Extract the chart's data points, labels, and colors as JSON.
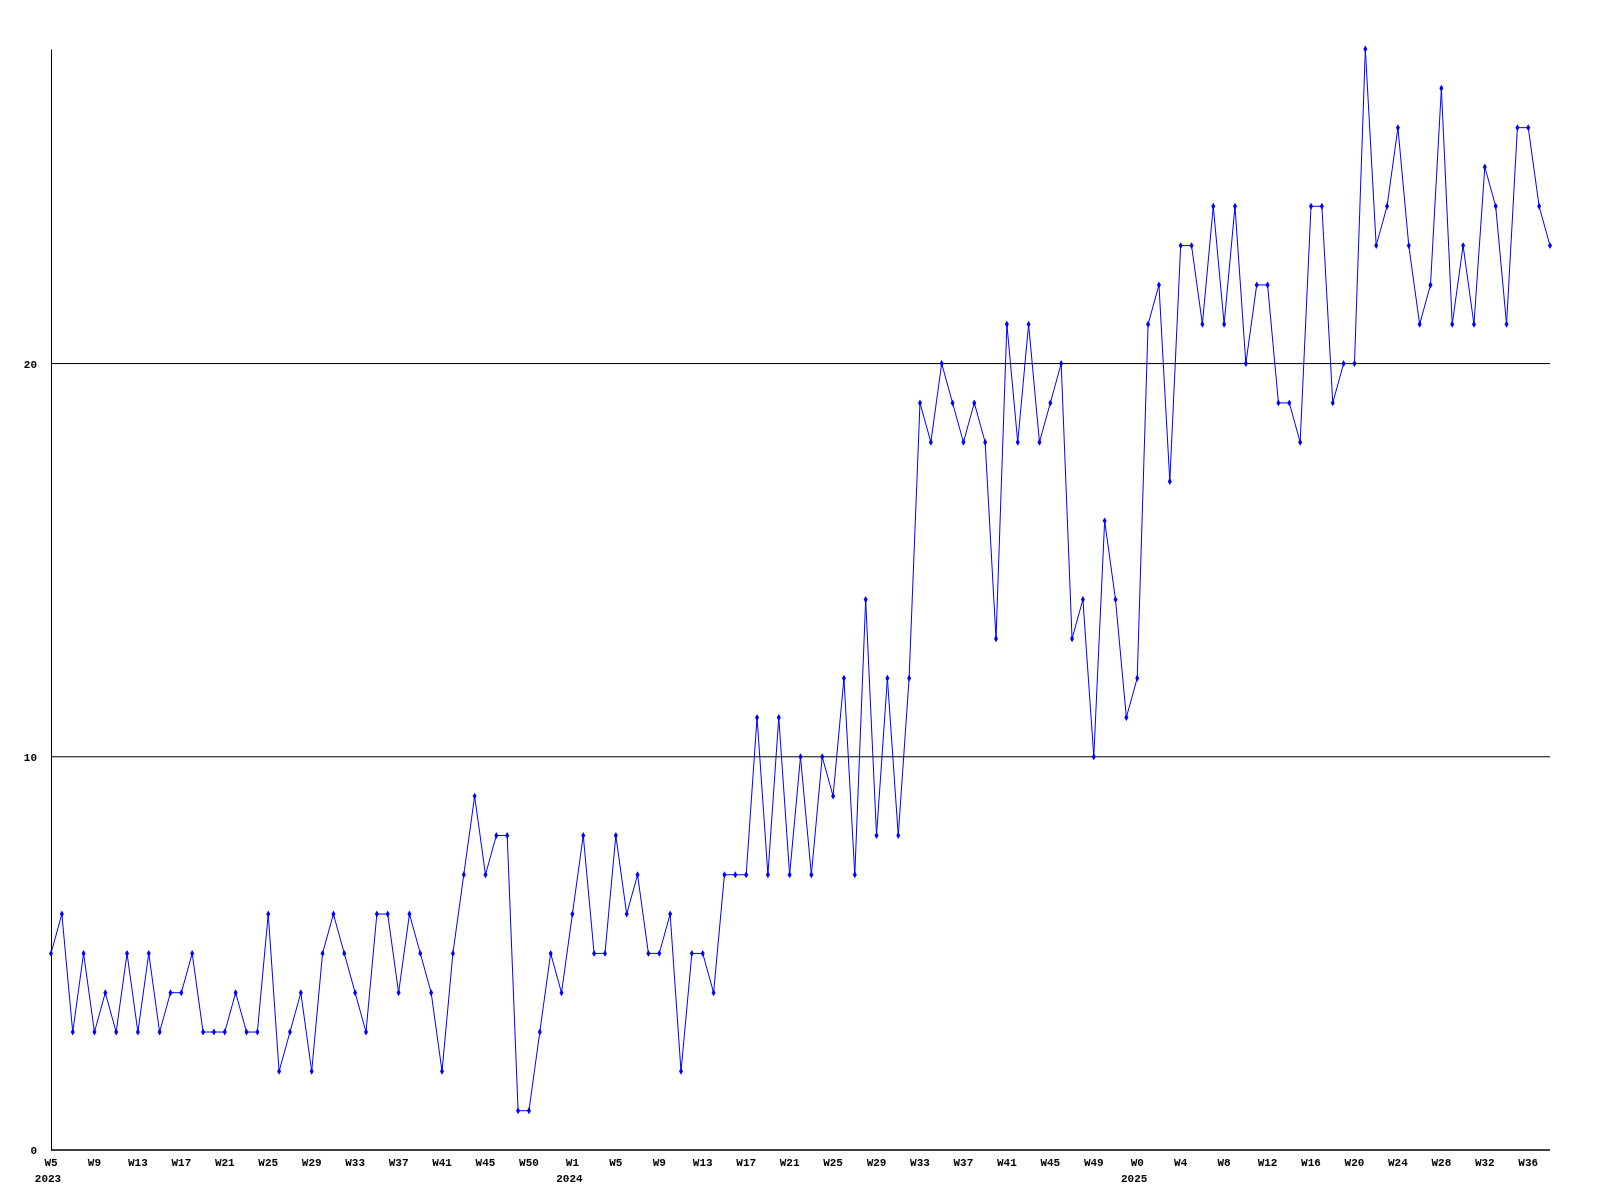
{
  "chart_data": {
    "type": "line",
    "categories": [
      "W5\n2023",
      null,
      null,
      null,
      "W9",
      null,
      null,
      null,
      "W13",
      null,
      null,
      null,
      "W17",
      null,
      null,
      null,
      "W21",
      null,
      null,
      null,
      "W25",
      null,
      null,
      null,
      "W29",
      null,
      null,
      null,
      "W33",
      null,
      null,
      null,
      "W37",
      null,
      null,
      null,
      "W41",
      null,
      null,
      null,
      "W45",
      null,
      null,
      null,
      "W50",
      null,
      null,
      null,
      "W1\n2024",
      null,
      null,
      null,
      "W5",
      null,
      null,
      null,
      "W9",
      null,
      null,
      null,
      "W13",
      null,
      null,
      null,
      "W17",
      null,
      null,
      null,
      "W21",
      null,
      null,
      null,
      "W25",
      null,
      null,
      null,
      "W29",
      null,
      null,
      null,
      "W33",
      null,
      null,
      null,
      "W37",
      null,
      null,
      null,
      "W41",
      null,
      null,
      null,
      "W45",
      null,
      null,
      null,
      "W49",
      null,
      null,
      null,
      "W0\n2025",
      null,
      null,
      null,
      "W4",
      null,
      null,
      null,
      "W8",
      null,
      null,
      null,
      "W12",
      null,
      null,
      null,
      "W16",
      null,
      null,
      null,
      "W20",
      null,
      null,
      null,
      "W24",
      null,
      null,
      null,
      "W28",
      null,
      null,
      null,
      "W32",
      null,
      null,
      null,
      "W36",
      null,
      null
    ],
    "series": [
      {
        "color": "#0000ff",
        "values": [
          5,
          6,
          3,
          5,
          3,
          4,
          3,
          5,
          3,
          5,
          3,
          4,
          4,
          5,
          3,
          3,
          3,
          4,
          3,
          3,
          6,
          2,
          3,
          4,
          2,
          5,
          6,
          5,
          4,
          3,
          6,
          6,
          4,
          6,
          5,
          4,
          2,
          5,
          7,
          9,
          7,
          8,
          8,
          1,
          1,
          3,
          5,
          4,
          6,
          8,
          5,
          5,
          8,
          6,
          7,
          5,
          5,
          6,
          2,
          5,
          5,
          4,
          7,
          7,
          7,
          11,
          7,
          11,
          7,
          10,
          7,
          10,
          9,
          12,
          7,
          14,
          8,
          12,
          8,
          12,
          19,
          18,
          20,
          19,
          18,
          19,
          18,
          13,
          21,
          18,
          21,
          18,
          19,
          20,
          13,
          14,
          10,
          16,
          14,
          11,
          12,
          21,
          22,
          17,
          23,
          23,
          21,
          24,
          21,
          24,
          20,
          22,
          22,
          19,
          19,
          18,
          24,
          24,
          19,
          20,
          20,
          28,
          23,
          24,
          26,
          23,
          21,
          22,
          27,
          21,
          23,
          21,
          25,
          24,
          21,
          26,
          26,
          24,
          23
        ]
      }
    ],
    "ylim": [
      0,
      28
    ],
    "yticks": [
      0,
      10,
      20
    ],
    "grid": "y",
    "marker": "diamond",
    "line_style": "solid"
  }
}
